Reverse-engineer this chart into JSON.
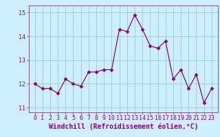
{
  "x": [
    0,
    1,
    2,
    3,
    4,
    5,
    6,
    7,
    8,
    9,
    10,
    11,
    12,
    13,
    14,
    15,
    16,
    17,
    18,
    19,
    20,
    21,
    22,
    23
  ],
  "y": [
    12.0,
    11.8,
    11.8,
    11.6,
    12.2,
    12.0,
    11.9,
    12.5,
    12.5,
    12.6,
    12.6,
    14.3,
    14.2,
    14.9,
    14.3,
    13.6,
    13.5,
    13.8,
    12.2,
    12.6,
    11.8,
    12.4,
    11.2,
    11.8
  ],
  "line_color": "#880088",
  "marker": "D",
  "marker_size": 2.5,
  "bg_color": "#cceeff",
  "grid_color": "#99cccc",
  "xlabel": "Windchill (Refroidissement éolien,°C)",
  "xlabel_fontsize": 7,
  "tick_fontsize": 6,
  "ylim": [
    10.8,
    15.3
  ],
  "yticks": [
    11,
    12,
    13,
    14,
    15
  ],
  "title_color": "#880088",
  "spine_color": "#886688"
}
